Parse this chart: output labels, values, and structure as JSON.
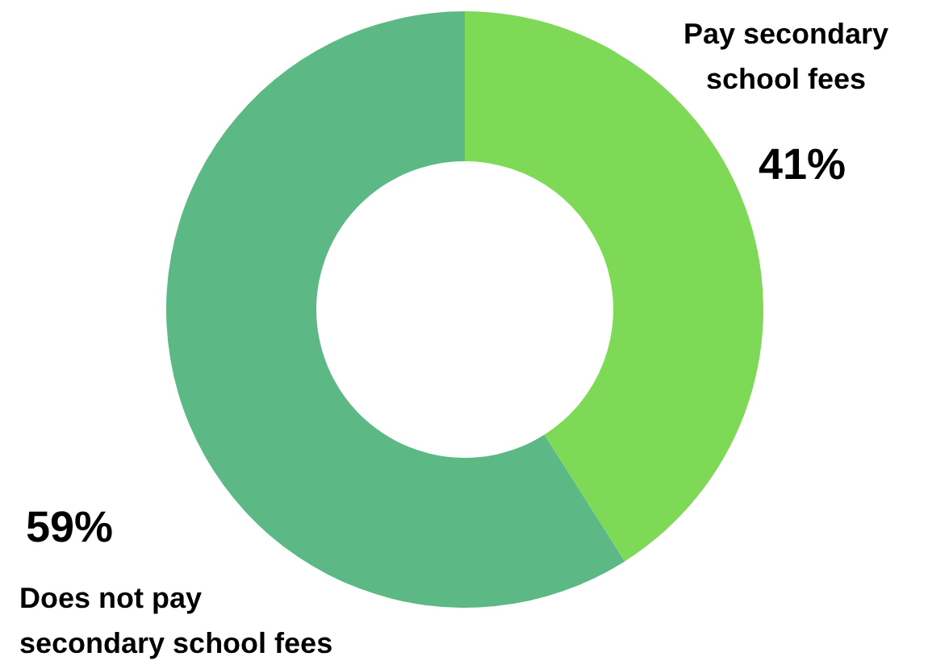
{
  "chart_data": {
    "type": "donut",
    "categories": [
      "Pay secondary school fees",
      "Does not pay secondary school fees"
    ],
    "values": [
      41,
      59
    ],
    "colors": [
      "#7ed957",
      "#5cb985"
    ],
    "value_labels": [
      "41%",
      "59%"
    ]
  }
}
